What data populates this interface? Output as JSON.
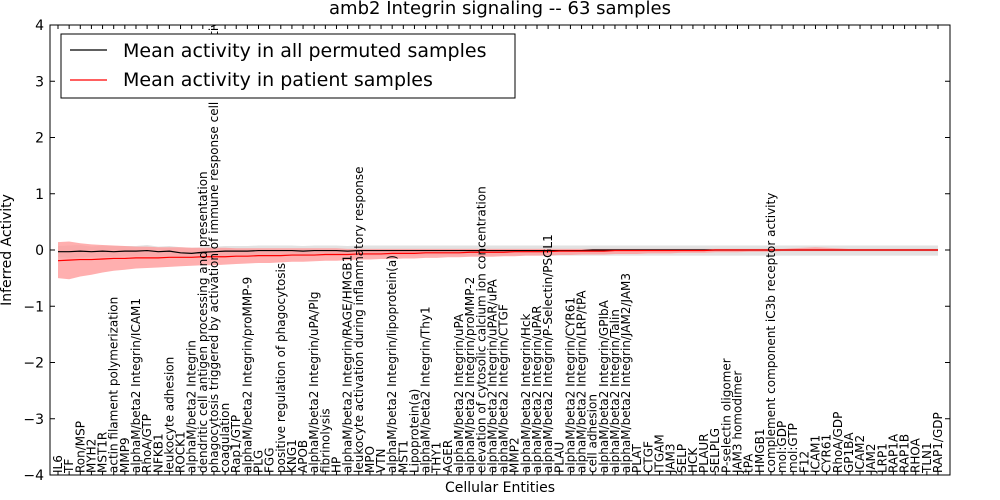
{
  "chart_data": {
    "type": "line",
    "title": "amb2 Integrin signaling -- 63 samples",
    "xlabel": "Cellular Entities",
    "ylabel": "Inferred Activity",
    "ylim": [
      -4,
      4
    ],
    "yticks": [
      -4,
      -3,
      -2,
      -1,
      0,
      1,
      2,
      3,
      4
    ],
    "legend_position": "top-left",
    "grid": false,
    "categories": [
      "IL6",
      "TF",
      "Ron/MSP",
      "MYH2",
      "MST1R",
      "actin filament polymerization",
      "MMP9",
      "alphaM/beta2 Integrin/ICAM1",
      "RhoA/GTP",
      "NFKB1",
      "leukocyte adhesion",
      "ROCK1",
      "alphaM/beta2 Integrin",
      "dendritic cell antigen processing and presentation",
      "phagocytosis triggered by activation of immune response cell surface activating receptor",
      "coagulation",
      "Rap1/GTP",
      "alphaM/beta2 Integrin/proMMP-9",
      "PLG",
      "FGG",
      "positive regulation of phagocytosis",
      "KNG1",
      "APOB",
      "alphaM/beta2 Integrin/uPA/Plg",
      "fibrinolysis",
      "HP",
      "alphaM/beta2 Integrin/RAGE/HMGB1",
      "leukocyte activation during inflammatory response",
      "MPO",
      "VTN",
      "alphaM/beta2 Integrin/lipoprotein(a)",
      "MST1",
      "Lipoprotein(a)",
      "alphaM/beta2 Integrin/Thy1",
      "THY1",
      "AGER",
      "alphaM/beta2 Integrin/uPA",
      "alphaM/beta2 Integrin/proMMP-2",
      "elevation of cytosolic calcium ion concentration",
      "alphaM/beta2 Integrin/uPAR/uPA",
      "alphaM/beta2 Integrin/CTGF",
      "MMP2",
      "alphaM/beta2 Integrin/Hck",
      "alphaM/beta2 Integrin/uPAR",
      "alphaM/beta2 Integrin/P-Selectin/PSGL1",
      "PLAU",
      "alphaM/beta2 Integrin/CYR61",
      "alphaM/beta2 Integrin/LRP/tPA",
      "cell adhesion",
      "alphaM/beta2 Integrin/GPIbA",
      "alphaM/beta2 Integrin/Talin",
      "alphaM/beta2 Integrin/JAM2/JAM3",
      "PLAT",
      "CTGF",
      "ITGAM",
      "JAM3",
      "SELP",
      "HCK",
      "PLAUR",
      "SELPLG",
      "P-selectin oligomer",
      "JAM3 homodimer",
      "tPA",
      "HMGB1",
      "complement component iC3b receptor activity",
      "mol:GDP",
      "mol:GTP",
      "F12",
      "ICAM1",
      "CYR61",
      "RhoA/GDP",
      "GP1BA",
      "ICAM2",
      "JAM2",
      "LRP1",
      "RAP1A",
      "RAP1B",
      "RHOA",
      "TLN1",
      "RAP1/GDP"
    ],
    "series": [
      {
        "name": "Mean activity in all permuted samples",
        "color": "#000000",
        "band_color": "#bfbfbf",
        "values": [
          -0.03,
          -0.03,
          -0.02,
          -0.03,
          -0.02,
          -0.03,
          -0.02,
          -0.02,
          -0.01,
          -0.03,
          -0.02,
          -0.05,
          -0.06,
          -0.04,
          -0.03,
          -0.02,
          -0.02,
          -0.02,
          -0.01,
          -0.01,
          -0.01,
          -0.01,
          -0.02,
          -0.01,
          -0.01,
          -0.01,
          -0.02,
          -0.01,
          -0.01,
          -0.01,
          -0.01,
          -0.01,
          -0.01,
          -0.01,
          -0.01,
          -0.01,
          -0.01,
          -0.01,
          -0.01,
          -0.01,
          -0.01,
          -0.01,
          -0.01,
          -0.01,
          -0.01,
          -0.01,
          -0.01,
          -0.01,
          0.0,
          0.0,
          0.0,
          0.0,
          0.0,
          0.0,
          0.0,
          0.0,
          0.0,
          0.0,
          0.0,
          0.0,
          0.0,
          0.0,
          0.0,
          0.0,
          0.0,
          0.0,
          0.0,
          0.0,
          0.0,
          0.0,
          0.0,
          0.0,
          0.0,
          0.0,
          0.0,
          0.0,
          0.0,
          0.0,
          0.0,
          0.0
        ],
        "lower": [
          -0.13,
          -0.14,
          -0.13,
          -0.12,
          -0.12,
          -0.12,
          -0.11,
          -0.11,
          -0.11,
          -0.12,
          -0.11,
          -0.13,
          -0.14,
          -0.12,
          -0.12,
          -0.11,
          -0.11,
          -0.11,
          -0.1,
          -0.1,
          -0.1,
          -0.1,
          -0.1,
          -0.1,
          -0.1,
          -0.1,
          -0.1,
          -0.1,
          -0.1,
          -0.1,
          -0.1,
          -0.1,
          -0.1,
          -0.1,
          -0.1,
          -0.1,
          -0.1,
          -0.1,
          -0.1,
          -0.1,
          -0.1,
          -0.1,
          -0.1,
          -0.1,
          -0.1,
          -0.1,
          -0.1,
          -0.1,
          -0.1,
          -0.1,
          -0.1,
          -0.1,
          -0.1,
          -0.1,
          -0.1,
          -0.1,
          -0.1,
          -0.1,
          -0.1,
          -0.1,
          -0.1,
          -0.1,
          -0.1,
          -0.1,
          -0.1,
          -0.1,
          -0.1,
          -0.1,
          -0.1,
          -0.1,
          -0.1,
          -0.1,
          -0.1,
          -0.1,
          -0.1,
          -0.1,
          -0.1,
          -0.1,
          -0.1,
          -0.1
        ],
        "upper": [
          0.07,
          0.08,
          0.09,
          0.06,
          0.08,
          0.07,
          0.07,
          0.07,
          0.09,
          0.06,
          0.07,
          0.05,
          0.04,
          0.05,
          0.06,
          0.07,
          0.07,
          0.07,
          0.08,
          0.08,
          0.08,
          0.08,
          0.07,
          0.08,
          0.08,
          0.08,
          0.07,
          0.08,
          0.08,
          0.08,
          0.08,
          0.08,
          0.08,
          0.08,
          0.08,
          0.08,
          0.08,
          0.08,
          0.08,
          0.08,
          0.08,
          0.08,
          0.08,
          0.08,
          0.08,
          0.08,
          0.08,
          0.08,
          0.08,
          0.08,
          0.08,
          0.08,
          0.08,
          0.08,
          0.08,
          0.08,
          0.08,
          0.08,
          0.08,
          0.08,
          0.08,
          0.08,
          0.08,
          0.08,
          0.08,
          0.08,
          0.08,
          0.08,
          0.08,
          0.08,
          0.08,
          0.08,
          0.08,
          0.08,
          0.08,
          0.08,
          0.08,
          0.08,
          0.08,
          0.08
        ]
      },
      {
        "name": "Mean activity in patient samples",
        "color": "#ff0000",
        "band_color": "#ff9b9b",
        "values": [
          -0.19,
          -0.18,
          -0.17,
          -0.17,
          -0.16,
          -0.15,
          -0.15,
          -0.14,
          -0.14,
          -0.14,
          -0.13,
          -0.13,
          -0.13,
          -0.12,
          -0.12,
          -0.12,
          -0.11,
          -0.11,
          -0.1,
          -0.1,
          -0.1,
          -0.09,
          -0.09,
          -0.09,
          -0.08,
          -0.08,
          -0.08,
          -0.07,
          -0.07,
          -0.07,
          -0.06,
          -0.06,
          -0.06,
          -0.05,
          -0.05,
          -0.05,
          -0.05,
          -0.04,
          -0.04,
          -0.04,
          -0.04,
          -0.03,
          -0.03,
          -0.03,
          -0.03,
          -0.02,
          -0.02,
          -0.02,
          -0.02,
          -0.02,
          -0.01,
          -0.01,
          -0.01,
          -0.01,
          -0.01,
          -0.01,
          -0.01,
          -0.01,
          -0.01,
          0.0,
          0.0,
          0.0,
          0.0,
          0.0,
          0.0,
          0.0,
          0.0,
          0.0,
          0.0,
          0.0,
          0.0,
          0.0,
          0.0,
          0.0,
          0.0,
          0.0,
          0.0,
          0.0,
          0.0,
          0.0
        ],
        "lower": [
          -0.5,
          -0.52,
          -0.47,
          -0.44,
          -0.4,
          -0.37,
          -0.35,
          -0.33,
          -0.32,
          -0.31,
          -0.3,
          -0.29,
          -0.28,
          -0.27,
          -0.27,
          -0.26,
          -0.25,
          -0.24,
          -0.23,
          -0.23,
          -0.22,
          -0.21,
          -0.21,
          -0.2,
          -0.19,
          -0.19,
          -0.18,
          -0.17,
          -0.17,
          -0.16,
          -0.16,
          -0.15,
          -0.15,
          -0.14,
          -0.14,
          -0.13,
          -0.13,
          -0.12,
          -0.12,
          -0.12,
          -0.11,
          -0.11,
          -0.1,
          -0.1,
          -0.1,
          -0.09,
          -0.09,
          -0.08,
          -0.08,
          -0.08,
          -0.07,
          -0.07,
          -0.07,
          -0.06,
          -0.06,
          -0.06,
          -0.05,
          -0.05,
          -0.05,
          -0.04,
          -0.04,
          -0.04,
          -0.03,
          -0.03,
          -0.03,
          -0.02,
          -0.02,
          -0.02,
          -0.02,
          -0.02,
          -0.02,
          -0.02,
          -0.02,
          -0.02,
          -0.02,
          -0.02,
          -0.02,
          -0.02,
          -0.02,
          -0.02
        ],
        "upper": [
          0.14,
          0.15,
          0.12,
          0.1,
          0.09,
          0.08,
          0.07,
          0.06,
          0.06,
          0.05,
          0.05,
          0.05,
          0.04,
          0.04,
          0.04,
          0.04,
          0.03,
          0.03,
          0.03,
          0.03,
          0.03,
          0.03,
          0.03,
          0.03,
          0.03,
          0.03,
          0.02,
          0.02,
          0.02,
          0.02,
          0.02,
          0.02,
          0.02,
          0.02,
          0.02,
          0.02,
          0.02,
          0.02,
          0.02,
          0.02,
          0.02,
          0.02,
          0.02,
          0.02,
          0.02,
          0.02,
          0.02,
          0.02,
          0.02,
          0.02,
          0.02,
          0.02,
          0.02,
          0.02,
          0.02,
          0.02,
          0.02,
          0.02,
          0.02,
          0.02,
          0.02,
          0.02,
          0.02,
          0.02,
          0.02,
          0.02,
          0.03,
          0.04,
          0.05,
          0.04,
          0.03,
          0.02,
          0.02,
          0.02,
          0.02,
          0.02,
          0.02,
          0.02,
          0.02,
          0.02
        ]
      }
    ]
  }
}
